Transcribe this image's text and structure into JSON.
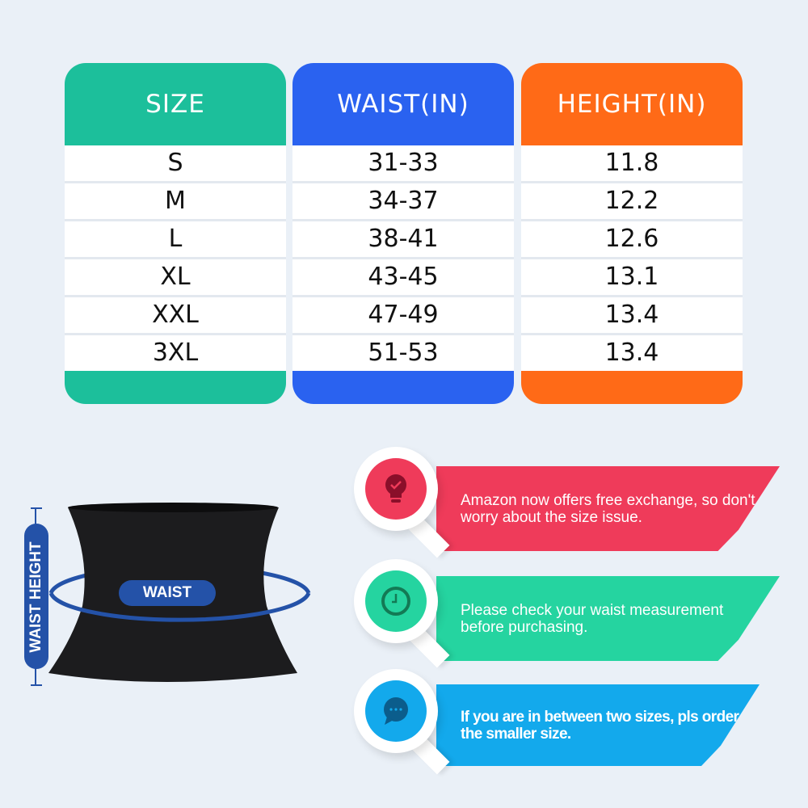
{
  "colors": {
    "size": "#1cbf9b",
    "waist": "#2a62f0",
    "height": "#ff6a17",
    "tip1": "#ef3b5a",
    "tip2": "#25d4a0",
    "tip3": "#13a9ec",
    "diagram_blue": "#2452a8"
  },
  "table": {
    "headers": [
      "SIZE",
      "WAIST(IN)",
      "HEIGHT(IN)"
    ],
    "rows": [
      [
        "S",
        "31-33",
        "11.8"
      ],
      [
        "M",
        "34-37",
        "12.2"
      ],
      [
        "L",
        "38-41",
        "12.6"
      ],
      [
        "XL",
        "43-45",
        "13.1"
      ],
      [
        "XXL",
        "47-49",
        "13.4"
      ],
      [
        "3XL",
        "51-53",
        "13.4"
      ]
    ]
  },
  "diagram": {
    "waist_label": "WAIST",
    "height_label": "WAIST HEIGHT"
  },
  "tips": [
    {
      "icon": "lightbulb-check-icon",
      "text": "Amazon now offers free exchange, so don't worry about the size issue."
    },
    {
      "icon": "clock-icon",
      "text": "Please check your waist measurement before purchasing."
    },
    {
      "icon": "chat-bubble-icon",
      "text": "If you are in between two sizes, pls order the smaller size."
    }
  ]
}
